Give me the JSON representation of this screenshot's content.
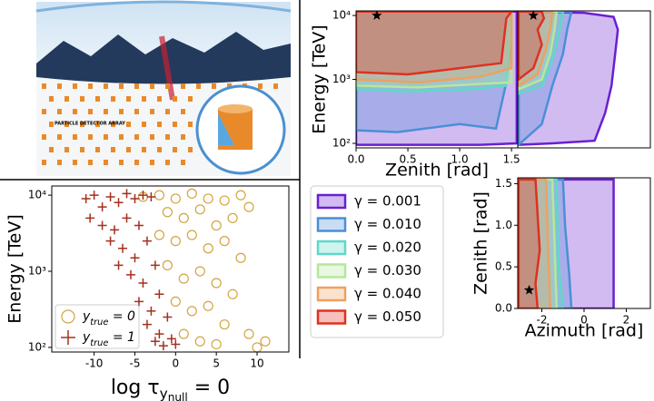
{
  "illustration": {
    "label": "PARTICLE DETECTOR ARRAY"
  },
  "chart_data": [
    {
      "type": "scatter",
      "xlabel": {
        "text": "log τ",
        "sub": "y",
        "subsub": "null",
        "after": " = 0"
      },
      "ylabel": "Energy [TeV]",
      "xlim": [
        -15.2,
        13.9
      ],
      "ylim": [
        87,
        13200
      ],
      "ylog": true,
      "xticks": [
        -10,
        -5,
        0,
        5,
        10
      ],
      "yticks": [
        {
          "value": 100,
          "label": "10²"
        },
        {
          "value": 1000,
          "label": "10³"
        },
        {
          "value": 10000,
          "label": "10⁴"
        }
      ],
      "legend": "lower left",
      "series": [
        {
          "name": {
            "text": "y",
            "sub": "true",
            "after": " = 0"
          },
          "color": "#d4a440",
          "marker": "circle",
          "x": [
            -4,
            -2,
            0,
            2,
            4,
            6,
            8,
            9,
            -1,
            1,
            3,
            5,
            7,
            -2,
            0,
            2,
            4,
            6,
            8,
            -1,
            1,
            3,
            5,
            7,
            0,
            2,
            4,
            6,
            9,
            1,
            3,
            5,
            10,
            11
          ],
          "y": [
            9500,
            10000,
            9000,
            10500,
            9000,
            8500,
            10000,
            7000,
            6000,
            5000,
            6500,
            4000,
            5000,
            3000,
            2500,
            3000,
            2000,
            2500,
            1500,
            1200,
            800,
            1000,
            700,
            500,
            400,
            300,
            350,
            200,
            150,
            150,
            120,
            110,
            100,
            120
          ]
        },
        {
          "name": {
            "text": "y",
            "sub": "true",
            "after": " = 1"
          },
          "color": "#a3301f",
          "marker": "plus",
          "x": [
            -11,
            -10,
            -9,
            -8,
            -7,
            -6,
            -5,
            -4,
            -3,
            -10.5,
            -9,
            -7.5,
            -6,
            -4.5,
            -8,
            -6.5,
            -5,
            -3.5,
            -7,
            -5.5,
            -4,
            -2.5,
            -4.5,
            -3,
            -2,
            -3.5,
            -2,
            -1,
            -2.5,
            -0.5,
            0,
            -1.5
          ],
          "y": [
            9000,
            10000,
            7000,
            9500,
            8000,
            10500,
            9000,
            10000,
            9500,
            5000,
            4000,
            3500,
            5000,
            4000,
            2500,
            2000,
            1500,
            2500,
            1200,
            900,
            700,
            1200,
            400,
            300,
            500,
            200,
            150,
            250,
            120,
            130,
            110,
            105
          ]
        }
      ]
    },
    {
      "type": "contour",
      "xlabel": "Zenith [rad]",
      "ylabel": "Energy [TeV]",
      "xlim": [
        0,
        1.56
      ],
      "ylim": [
        85,
        11800
      ],
      "ylog": true,
      "xticks": [
        {
          "value": 0,
          "label": "0.0"
        },
        0.5,
        {
          "value": 1,
          "label": "1.0"
        },
        1.5
      ],
      "yticks": [
        {
          "value": 100,
          "label": "10²"
        },
        {
          "value": 1000,
          "label": "10³"
        },
        {
          "value": 10000,
          "label": "10⁴"
        }
      ],
      "star": {
        "x": 0.2,
        "y": 10000
      },
      "series": [
        {
          "name": "γ = 0.001",
          "color": "#6a1fd1",
          "x": [
            0,
            1.2,
            1.55,
            1.55,
            0
          ],
          "y": [
            95,
            95,
            100,
            11500,
            11500
          ]
        },
        {
          "name": "γ = 0.010",
          "color": "#4a8fd8",
          "x": [
            0,
            0.4,
            1.0,
            1.35,
            1.45,
            1.5,
            1.5,
            0
          ],
          "y": [
            160,
            150,
            200,
            170,
            900,
            5000,
            11500,
            11500
          ]
        },
        {
          "name": "γ = 0.020",
          "color": "#5fd8c8",
          "x": [
            0,
            0.5,
            1.1,
            1.45,
            1.5,
            0
          ],
          "y": [
            700,
            650,
            700,
            800,
            11500,
            11500
          ]
        },
        {
          "name": "γ = 0.030",
          "color": "#b5e89a",
          "x": [
            0,
            0.6,
            1.2,
            1.5,
            1.5,
            0
          ],
          "y": [
            800,
            750,
            850,
            900,
            11500,
            11500
          ]
        },
        {
          "name": "γ = 0.040",
          "color": "#f0a060",
          "x": [
            0,
            0.6,
            1.2,
            1.5,
            1.5,
            0
          ],
          "y": [
            1000,
            900,
            1100,
            1500,
            11500,
            11500
          ]
        },
        {
          "name": "γ = 0.050",
          "color": "#e03020",
          "x": [
            0,
            0.5,
            1.0,
            1.4,
            1.45,
            1.5,
            0
          ],
          "y": [
            1300,
            1200,
            1500,
            1800,
            9000,
            11500,
            11500
          ]
        }
      ]
    },
    {
      "type": "contour",
      "xlim": [
        -3.14,
        3.14
      ],
      "ylim": [
        85,
        11800
      ],
      "ylog": true,
      "star": {
        "x": -2.4,
        "y": 10000
      },
      "series": [
        {
          "color": "#6a1fd1",
          "x": [
            -3.1,
            -1.5,
            0.5,
            1.0,
            1.3,
            1.5,
            1.6,
            1.4,
            0,
            -3.1
          ],
          "y": [
            95,
            100,
            110,
            300,
            800,
            3000,
            6000,
            9500,
            11000,
            11500
          ]
        },
        {
          "color": "#4a8fd8",
          "x": [
            -3.1,
            -2,
            -1.5,
            -1,
            -0.8,
            -0.6,
            -3.1
          ],
          "y": [
            95,
            200,
            800,
            2500,
            6000,
            11500,
            11500
          ]
        },
        {
          "color": "#5fd8c8",
          "x": [
            -3.1,
            -2.0,
            -1.5,
            -1.2,
            -1.0,
            -3.1
          ],
          "y": [
            600,
            800,
            2000,
            5000,
            11500,
            11500
          ]
        },
        {
          "color": "#b5e89a",
          "x": [
            -3.1,
            -2.0,
            -1.6,
            -1.4,
            -1.3,
            -3.1
          ],
          "y": [
            700,
            1000,
            2500,
            6000,
            11500,
            11500
          ]
        },
        {
          "color": "#f0a060",
          "x": [
            -3.1,
            -2.2,
            -1.8,
            -1.6,
            -1.5,
            -3.1
          ],
          "y": [
            800,
            1200,
            3000,
            6000,
            11500,
            11500
          ]
        },
        {
          "color": "#e03020",
          "x": [
            -3.1,
            -2.4,
            -2.0,
            -2.2,
            -1.9,
            -2.0,
            -3.1
          ],
          "y": [
            1000,
            1500,
            3500,
            6000,
            9000,
            11500,
            11500
          ]
        }
      ]
    },
    {
      "type": "contour",
      "xlabel": "Azimuth [rad]",
      "ylabel": "Zenith [rad]",
      "xlim": [
        -3.14,
        3.14
      ],
      "ylim": [
        0,
        1.57
      ],
      "xticks": [
        -2,
        0,
        2
      ],
      "yticks": [
        {
          "value": 0,
          "label": "0.0"
        },
        0.5,
        {
          "value": 1,
          "label": "1.0"
        },
        1.5
      ],
      "star": {
        "x": -2.6,
        "y": 0.22
      },
      "series": [
        {
          "color": "#6a1fd1",
          "x": [
            -3.1,
            1.4,
            1.4,
            -3.1
          ],
          "y": [
            0,
            0,
            1.55,
            1.55
          ]
        },
        {
          "color": "#4a8fd8",
          "x": [
            -3.1,
            -0.6,
            -0.7,
            -0.9,
            -1.0,
            -3.1
          ],
          "y": [
            0,
            0,
            0.4,
            1.0,
            1.55,
            1.55
          ]
        },
        {
          "color": "#5fd8c8",
          "x": [
            -3.1,
            -1.0,
            -1.2,
            -1.3,
            -3.1
          ],
          "y": [
            0,
            0,
            0.5,
            1.55,
            1.55
          ]
        },
        {
          "color": "#b5e89a",
          "x": [
            -3.1,
            -1.3,
            -1.4,
            -1.5,
            -3.1
          ],
          "y": [
            0,
            0,
            0.8,
            1.55,
            1.55
          ]
        },
        {
          "color": "#f0a060",
          "x": [
            -3.1,
            -1.6,
            -1.7,
            -1.8,
            -3.1
          ],
          "y": [
            0,
            0,
            0.7,
            1.55,
            1.55
          ]
        },
        {
          "color": "#e03020",
          "x": [
            -3.1,
            -2.2,
            -2.3,
            -2.1,
            -2.3,
            -3.1
          ],
          "y": [
            0,
            0,
            0.3,
            0.7,
            1.55,
            1.55
          ]
        }
      ]
    }
  ]
}
